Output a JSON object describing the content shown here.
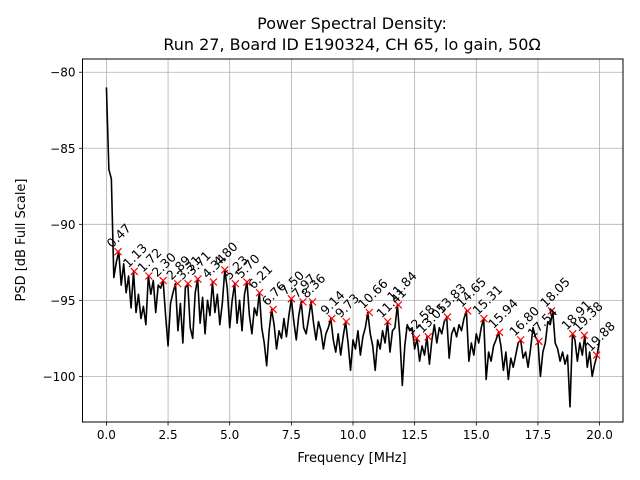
{
  "chart_data": {
    "type": "line",
    "title": "Power Spectral Density:",
    "subtitle": "Run 27, Board ID E190324, CH 65, lo gain, 50Ω",
    "xlabel": "Frequency [MHz]",
    "ylabel": "PSD [dB Full Scale]",
    "xlim": [
      -0.97,
      20.95
    ],
    "ylim": [
      -103.0,
      -79.13
    ],
    "xticks": [
      0.0,
      2.5,
      5.0,
      7.5,
      10.0,
      12.5,
      15.0,
      17.5,
      20.0
    ],
    "xtick_labels": [
      "0.0",
      "2.5",
      "5.0",
      "7.5",
      "10.0",
      "12.5",
      "15.0",
      "17.5",
      "20.0"
    ],
    "yticks": [
      -80,
      -85,
      -90,
      -95,
      -100
    ],
    "ytick_labels": [
      "−80",
      "−85",
      "−90",
      "−95",
      "−100"
    ],
    "grid": true,
    "line_color": "#000000",
    "marker_color": "#ff0000",
    "series": [
      {
        "name": "PSD",
        "x_start": 0.0,
        "x_step": 0.1,
        "values": [
          -81.0,
          -86.4,
          -87.0,
          -93.5,
          -92.5,
          -91.8,
          -94.0,
          -92.6,
          -94.5,
          -93.4,
          -95.5,
          -93.1,
          -95.8,
          -94.6,
          -96.2,
          -95.4,
          -96.6,
          -93.4,
          -94.6,
          -93.7,
          -95.8,
          -94.0,
          -94.2,
          -93.7,
          -96.0,
          -98.0,
          -95.2,
          -94.5,
          -93.9,
          -97.0,
          -95.2,
          -97.8,
          -94.2,
          -93.9,
          -96.8,
          -97.5,
          -94.5,
          -93.6,
          -96.5,
          -94.8,
          -97.2,
          -95.0,
          -96.0,
          -93.8,
          -95.8,
          -94.6,
          -96.6,
          -95.2,
          -93.0,
          -94.2,
          -96.8,
          -95.0,
          -93.9,
          -96.5,
          -95.0,
          -97.0,
          -94.6,
          -93.8,
          -96.0,
          -97.2,
          -95.5,
          -96.0,
          -94.5,
          -96.8,
          -97.8,
          -99.3,
          -97.0,
          -95.6,
          -96.6,
          -98.2,
          -97.0,
          -97.5,
          -96.2,
          -97.4,
          -96.0,
          -94.9,
          -96.4,
          -97.6,
          -96.0,
          -95.1,
          -96.8,
          -97.2,
          -96.2,
          -95.1,
          -96.5,
          -97.6,
          -96.4,
          -97.0,
          -98.2,
          -97.2,
          -96.8,
          -96.2,
          -97.6,
          -98.4,
          -97.2,
          -98.6,
          -97.4,
          -96.4,
          -97.8,
          -99.6,
          -97.6,
          -98.2,
          -97.0,
          -98.6,
          -97.4,
          -96.8,
          -95.8,
          -97.2,
          -98.0,
          -99.6,
          -97.6,
          -98.2,
          -97.0,
          -97.8,
          -96.4,
          -98.4,
          -97.0,
          -96.8,
          -95.3,
          -97.4,
          -100.6,
          -98.0,
          -96.6,
          -97.0,
          -96.8,
          -98.2,
          -97.5,
          -99.0,
          -98.0,
          -98.6,
          -97.4,
          -99.2,
          -97.6,
          -96.6,
          -97.8,
          -96.8,
          -97.2,
          -96.4,
          -96.1,
          -98.8,
          -97.2,
          -96.8,
          -97.4,
          -96.6,
          -97.0,
          -96.2,
          -95.7,
          -99.0,
          -97.8,
          -98.6,
          -97.2,
          -97.8,
          -96.8,
          -96.2,
          -100.2,
          -98.4,
          -99.0,
          -98.0,
          -97.6,
          -97.1,
          -98.0,
          -99.6,
          -98.4,
          -100.2,
          -98.8,
          -99.4,
          -98.6,
          -97.8,
          -97.6,
          -98.8,
          -98.4,
          -99.4,
          -98.2,
          -96.8,
          -97.4,
          -97.7,
          -100.0,
          -98.4,
          -97.8,
          -96.4,
          -96.6,
          -95.7,
          -97.8,
          -98.2,
          -99.0,
          -98.4,
          -99.2,
          -98.6,
          -102.0,
          -97.2,
          -97.6,
          -99.0,
          -97.8,
          -98.6,
          -97.3,
          -99.4,
          -98.4,
          -100.0,
          -99.2,
          -98.6,
          -97.6
        ]
      }
    ],
    "peaks": [
      {
        "x": 0.47,
        "y": -91.8,
        "label": "0.47"
      },
      {
        "x": 1.13,
        "y": -93.1,
        "label": "1.13"
      },
      {
        "x": 1.72,
        "y": -93.4,
        "label": "1.72"
      },
      {
        "x": 2.3,
        "y": -93.7,
        "label": "2.30"
      },
      {
        "x": 2.89,
        "y": -93.9,
        "label": "2.89"
      },
      {
        "x": 3.31,
        "y": -93.9,
        "label": "3.31"
      },
      {
        "x": 3.71,
        "y": -93.6,
        "label": "3.71"
      },
      {
        "x": 4.34,
        "y": -93.8,
        "label": "4.34"
      },
      {
        "x": 4.8,
        "y": -93.0,
        "label": "4.80"
      },
      {
        "x": 5.23,
        "y": -93.9,
        "label": "5.23"
      },
      {
        "x": 5.7,
        "y": -93.8,
        "label": "5.70"
      },
      {
        "x": 6.21,
        "y": -94.5,
        "label": "6.21"
      },
      {
        "x": 6.76,
        "y": -95.6,
        "label": "6.76"
      },
      {
        "x": 7.5,
        "y": -94.9,
        "label": "7.50"
      },
      {
        "x": 7.97,
        "y": -95.1,
        "label": "7.97"
      },
      {
        "x": 8.36,
        "y": -95.1,
        "label": "8.36"
      },
      {
        "x": 9.14,
        "y": -96.2,
        "label": "9.14"
      },
      {
        "x": 9.73,
        "y": -96.4,
        "label": "9.73"
      },
      {
        "x": 10.66,
        "y": -95.8,
        "label": "10.66"
      },
      {
        "x": 11.41,
        "y": -96.4,
        "label": "11.41"
      },
      {
        "x": 11.84,
        "y": -95.3,
        "label": "11.84"
      },
      {
        "x": 12.58,
        "y": -97.5,
        "label": "12.58"
      },
      {
        "x": 13.05,
        "y": -97.4,
        "label": "13.05"
      },
      {
        "x": 13.83,
        "y": -96.1,
        "label": "13.83"
      },
      {
        "x": 14.65,
        "y": -95.7,
        "label": "14.65"
      },
      {
        "x": 15.31,
        "y": -96.2,
        "label": "15.31"
      },
      {
        "x": 15.94,
        "y": -97.1,
        "label": "15.94"
      },
      {
        "x": 16.8,
        "y": -97.6,
        "label": "16.80"
      },
      {
        "x": 17.54,
        "y": -97.7,
        "label": "17.54"
      },
      {
        "x": 18.05,
        "y": -95.7,
        "label": "18.05"
      },
      {
        "x": 18.91,
        "y": -97.2,
        "label": "18.91"
      },
      {
        "x": 19.38,
        "y": -97.3,
        "label": "19.38"
      },
      {
        "x": 19.88,
        "y": -98.6,
        "label": "19.88"
      }
    ]
  }
}
